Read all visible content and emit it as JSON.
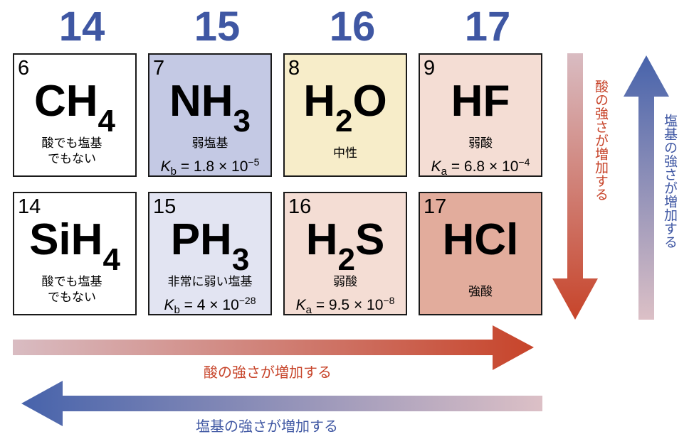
{
  "groups": [
    "14",
    "15",
    "16",
    "17"
  ],
  "cells": [
    {
      "number": "6",
      "formula_main": "CH",
      "formula_sub": "4",
      "formula_tail": "",
      "desc_line1": "酸でも塩基",
      "desc_line2": "でもない",
      "k_symbol": "",
      "k_sub": "",
      "k_mantissa": "",
      "k_exp": "",
      "fill": "#ffffff"
    },
    {
      "number": "7",
      "formula_main": "NH",
      "formula_sub": "3",
      "formula_tail": "",
      "desc_line1": "弱塩基",
      "desc_line2": "",
      "k_symbol": "K",
      "k_sub": "b",
      "k_mantissa": " = 1.8 × 10",
      "k_exp": "−5",
      "fill": "#c4c9e4"
    },
    {
      "number": "8",
      "formula_main": "H",
      "formula_sub": "2",
      "formula_tail": "O",
      "desc_line1": "中性",
      "desc_line2": "",
      "k_symbol": "",
      "k_sub": "",
      "k_mantissa": "",
      "k_exp": "",
      "fill": "#f7edc9"
    },
    {
      "number": "9",
      "formula_main": "HF",
      "formula_sub": "",
      "formula_tail": "",
      "desc_line1": "弱酸",
      "desc_line2": "",
      "k_symbol": "K",
      "k_sub": "a",
      "k_mantissa": " = 6.8 × 10",
      "k_exp": "−4",
      "fill": "#f4ddd4"
    },
    {
      "number": "14",
      "formula_main": "SiH",
      "formula_sub": "4",
      "formula_tail": "",
      "desc_line1": "酸でも塩基",
      "desc_line2": "でもない",
      "k_symbol": "",
      "k_sub": "",
      "k_mantissa": "",
      "k_exp": "",
      "fill": "#ffffff"
    },
    {
      "number": "15",
      "formula_main": "PH",
      "formula_sub": "3",
      "formula_tail": "",
      "desc_line1": "非常に弱い塩基",
      "desc_line2": "",
      "k_symbol": "K",
      "k_sub": "b",
      "k_mantissa": " = 4 × 10",
      "k_exp": "−28",
      "fill": "#e2e4f2"
    },
    {
      "number": "16",
      "formula_main": "H",
      "formula_sub": "2",
      "formula_tail": "S",
      "desc_line1": "弱酸",
      "desc_line2": "",
      "k_symbol": "K",
      "k_sub": "a",
      "k_mantissa": " = 9.5 × 10",
      "k_exp": "−8",
      "fill": "#f4ddd4"
    },
    {
      "number": "17",
      "formula_main": "HCl",
      "formula_sub": "",
      "formula_tail": "",
      "desc_line1": "強酸",
      "desc_line2": "",
      "k_symbol": "",
      "k_sub": "",
      "k_mantissa": "",
      "k_exp": "",
      "fill": "#e2ac9c"
    }
  ],
  "arrows": {
    "acid_horizontal": "酸の強さが増加する",
    "base_horizontal": "塩基の強さが増加する",
    "acid_vertical": "酸の強さが増加する",
    "base_vertical": "塩基の強さが増加する"
  },
  "colors": {
    "group_number": "#3f57a3",
    "acid_arrow": "#c7442a",
    "acid_arrow_fade": "#d9bcc2",
    "base_arrow": "#4763ab",
    "base_arrow_fade": "#dcc0c6",
    "acid_text": "#c7442a",
    "base_text": "#3f57a3"
  }
}
